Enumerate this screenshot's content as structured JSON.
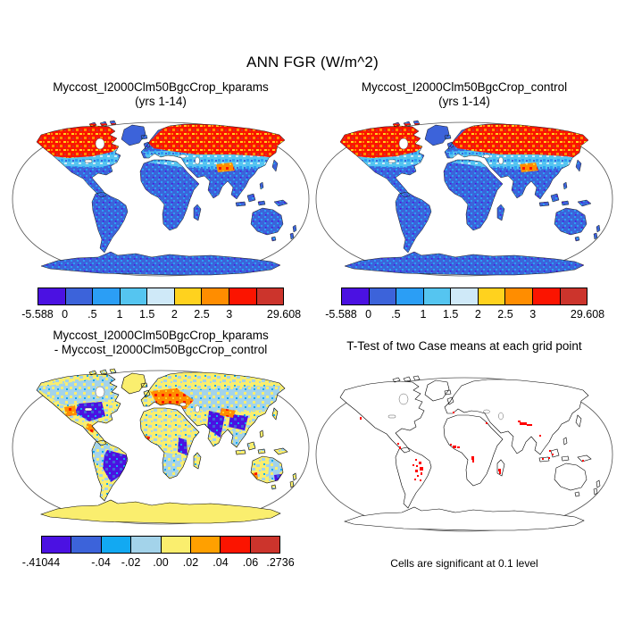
{
  "figure": {
    "title": "ANN FGR (W/m^2)",
    "background": "#ffffff"
  },
  "panels": {
    "top_left": {
      "title_line1": "Myccost_I2000Clm50BgcCrop_kparams",
      "title_line2": "(yrs 1-14)",
      "colorbar": "mean"
    },
    "top_right": {
      "title_line1": "Myccost_I2000Clm50BgcCrop_control",
      "title_line2": "(yrs 1-14)",
      "colorbar": "mean"
    },
    "bottom_left": {
      "title_line1": "Myccost_I2000Clm50BgcCrop_kparams",
      "title_line2": "- Myccost_I2000Clm50BgcCrop_control",
      "colorbar": "diff"
    },
    "bottom_right": {
      "title": "T-Test of two Case means at each grid point",
      "caption": "Cells are significant at 0.1 level",
      "significance_color": "#ff0000"
    }
  },
  "colorbars": {
    "mean": {
      "colors": [
        "#4b11e2",
        "#3c63da",
        "#2b9ef5",
        "#55c5f0",
        "#cfe9f8",
        "#ffd21e",
        "#ff8d00",
        "#fb1400",
        "#cc342c"
      ],
      "ticks": [
        {
          "label": "-5.588",
          "pos": 0
        },
        {
          "label": "0",
          "pos": 0.1111
        },
        {
          "label": ".5",
          "pos": 0.2222
        },
        {
          "label": "1",
          "pos": 0.3333
        },
        {
          "label": "1.5",
          "pos": 0.4444
        },
        {
          "label": "2",
          "pos": 0.5556
        },
        {
          "label": "2.5",
          "pos": 0.6667
        },
        {
          "label": "3",
          "pos": 0.7778
        },
        {
          "label": "29.608",
          "pos": 1
        }
      ]
    },
    "diff": {
      "colors": [
        "#4b11e2",
        "#3c63da",
        "#12a9f2",
        "#a3d3ea",
        "#faee6e",
        "#ffa000",
        "#fb1400",
        "#cc342c"
      ],
      "ticks": [
        {
          "label": "-.41044",
          "pos": 0
        },
        {
          "label": "-.04",
          "pos": 0.25
        },
        {
          "label": "-.02",
          "pos": 0.375
        },
        {
          "label": ".00",
          "pos": 0.5
        },
        {
          "label": ".02",
          "pos": 0.625
        },
        {
          "label": ".04",
          "pos": 0.75
        },
        {
          "label": ".06",
          "pos": 0.875
        },
        {
          "label": ".2736",
          "pos": 1
        }
      ]
    }
  },
  "chart_data": [
    {
      "type": "heatmap",
      "subtype": "global-land-map",
      "projection": "robinson",
      "title": "Myccost_I2000Clm50BgcCrop_kparams (yrs 1-14)",
      "variable": "ANN FGR (W/m^2)",
      "min": -5.588,
      "max": 29.608,
      "contour_levels": [
        0,
        0.5,
        1,
        1.5,
        2,
        2.5,
        3
      ],
      "palette": [
        "#4b11e2",
        "#3c63da",
        "#2b9ef5",
        "#55c5f0",
        "#cfe9f8",
        "#ffd21e",
        "#ff8d00",
        "#fb1400",
        "#cc342c"
      ],
      "legend_position": "bottom",
      "description": "Oceans masked white; high values (red/orange, >3) across Alaska, northern Canada around Hudson Bay and Siberia; light blue/pale values (1-2) in northern mid-latitudes; low values (blue, 0-1) over tropics, southern continents, Greenland and Antarctica."
    },
    {
      "type": "heatmap",
      "subtype": "global-land-map",
      "projection": "robinson",
      "title": "Myccost_I2000Clm50BgcCrop_control (yrs 1-14)",
      "variable": "ANN FGR (W/m^2)",
      "min": -5.588,
      "max": 29.608,
      "contour_levels": [
        0,
        0.5,
        1,
        1.5,
        2,
        2.5,
        3
      ],
      "palette": [
        "#4b11e2",
        "#3c63da",
        "#2b9ef5",
        "#55c5f0",
        "#cfe9f8",
        "#ffd21e",
        "#ff8d00",
        "#fb1400",
        "#cc342c"
      ],
      "legend_position": "bottom",
      "description": "Nearly identical spatial pattern to the kparams case: red/orange arctic land, blue tropics and southern hemisphere, white oceans."
    },
    {
      "type": "heatmap",
      "subtype": "global-land-map-difference",
      "projection": "robinson",
      "title": "Myccost_I2000Clm50BgcCrop_kparams - Myccost_I2000Clm50BgcCrop_control",
      "variable": "ANN FGR difference (W/m^2)",
      "min": -0.41044,
      "max": 0.2736,
      "contour_levels": [
        -0.04,
        -0.02,
        0,
        0.02,
        0.04,
        0.06
      ],
      "palette": [
        "#4b11e2",
        "#3c63da",
        "#12a9f2",
        "#a3d3ea",
        "#faee6e",
        "#ffa000",
        "#fb1400",
        "#cc342c"
      ],
      "legend_position": "bottom",
      "description": "Mottled small positive (pale yellow) and small negative (light blue) differences; strong negative (dark blue) over eastern US, eastern Brazil, India, west/east Africa and east China; positive (orange/red) over Europe/Turkey, central US, Tibet, Mexico and the West African coast; Antarctica and Greenland uniformly pale yellow."
    },
    {
      "type": "map",
      "subtype": "significance-mask",
      "projection": "robinson",
      "title": "T-Test of two Case means at each grid point",
      "note": "Cells are significant at 0.1 level",
      "highlight_color": "#ff0000",
      "significant_regions": [
        "central and eastern Brazil (largest cluster)",
        "Colombia / Central America",
        "US west coast",
        "Iberia (single cell)",
        "West African coast (Gulf of Guinea)",
        "Gabon / Congo coast",
        "Red Sea coast",
        "Madagascar",
        "Himalaya / northern India streak",
        "Indochina",
        "Borneo and Java",
        "New Guinea"
      ]
    }
  ]
}
